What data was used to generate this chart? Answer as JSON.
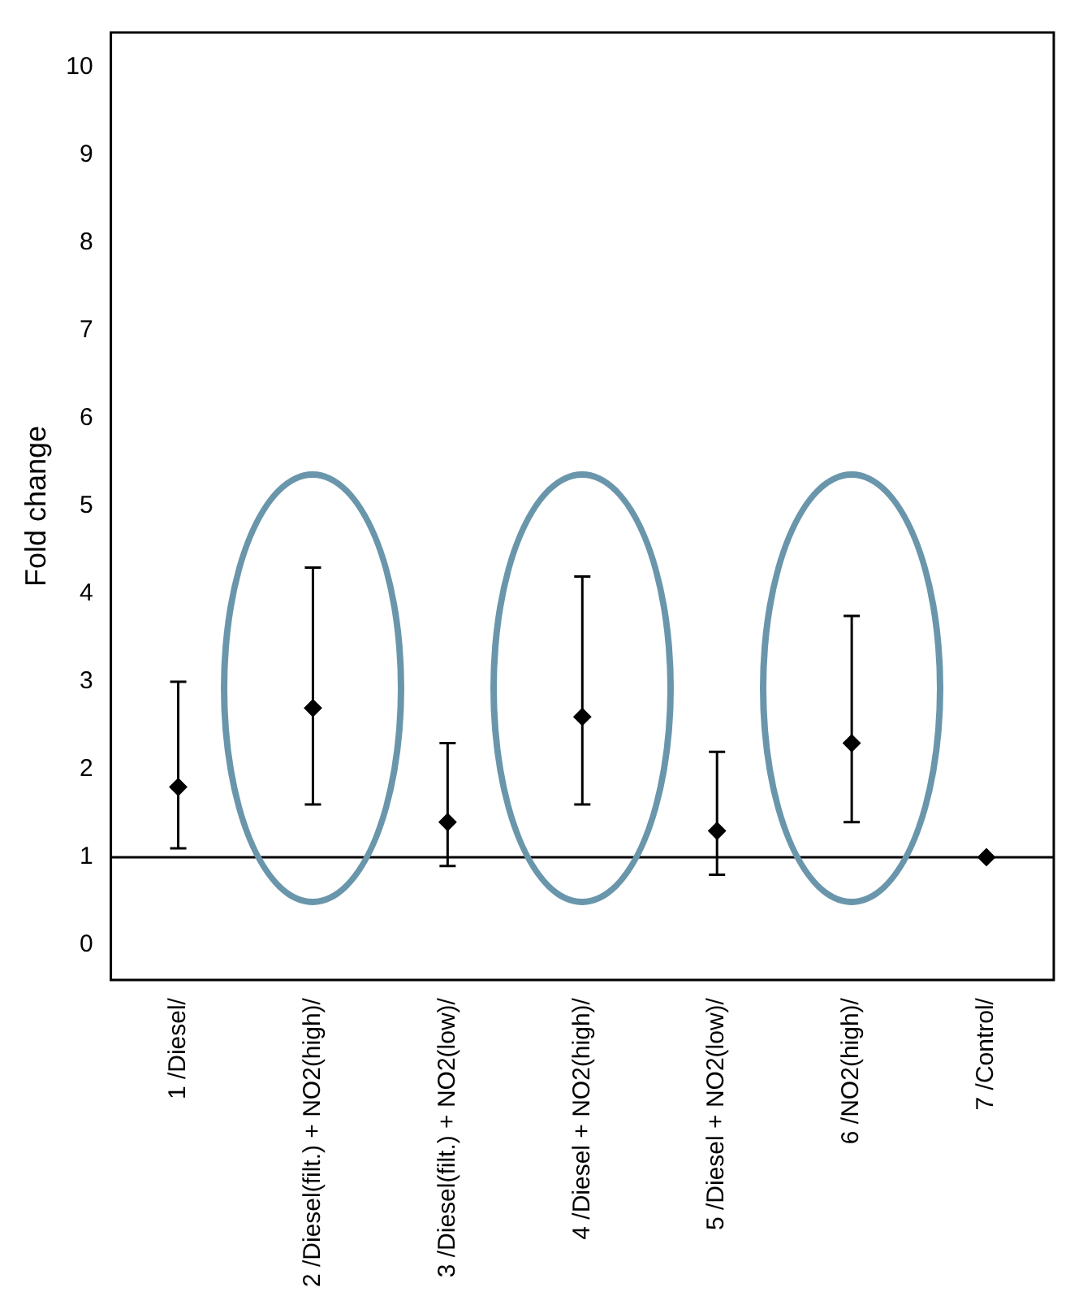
{
  "chart_data": {
    "type": "scatter",
    "ylabel": "Fold change",
    "categories": [
      "1 /Diesel/",
      "2 /Diesel(filt.) + NO2(high)/",
      "3 /Diesel(filt.) + NO2(low)/",
      "4 /Diesel + NO2(high)/",
      "5 /Diesel + NO2(low)/",
      "6 /NO2(high)/",
      "7 /Control/"
    ],
    "series": [
      {
        "color": "#000000",
        "values": [
          1.8,
          2.7,
          1.4,
          2.6,
          1.3,
          2.3,
          1.0
        ],
        "errors": [
          [
            1.1,
            3.0
          ],
          [
            1.6,
            4.3
          ],
          [
            0.9,
            2.3
          ],
          [
            1.6,
            4.2
          ],
          [
            0.8,
            2.2
          ],
          [
            1.4,
            3.75
          ],
          null
        ]
      }
    ],
    "marker": "diamond",
    "ylim": [
      -0.4,
      10.4
    ],
    "yticks": [
      0,
      1,
      2,
      3,
      4,
      5,
      6,
      7,
      8,
      9,
      10
    ],
    "ref_lines": [
      {
        "axis": "y",
        "value": 1,
        "color": "#000000"
      }
    ]
  }
}
